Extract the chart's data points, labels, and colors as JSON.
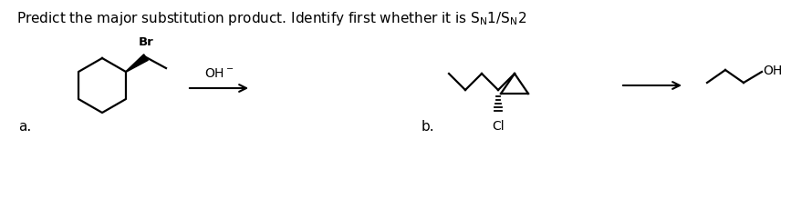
{
  "bg_color": "#ffffff",
  "label_a": "a.",
  "label_b": "b.",
  "br_label": "Br",
  "cl_label": "Cl",
  "oh_label": "OH",
  "lw": 1.6
}
